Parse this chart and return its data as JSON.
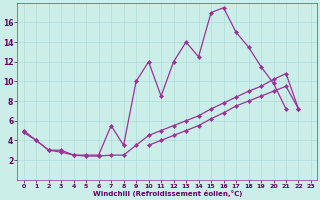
{
  "xlabel": "Windchill (Refroidissement éolien,°C)",
  "bg_color": "#cceee8",
  "grid_color": "#aadddd",
  "line_color": "#993399",
  "xlim": [
    -0.5,
    23.5
  ],
  "ylim": [
    0,
    18
  ],
  "xticks": [
    0,
    1,
    2,
    3,
    4,
    5,
    6,
    7,
    8,
    9,
    10,
    11,
    12,
    13,
    14,
    15,
    16,
    17,
    18,
    19,
    20,
    21,
    22,
    23
  ],
  "yticks": [
    2,
    4,
    6,
    8,
    10,
    12,
    14,
    16
  ],
  "line1_x": [
    0,
    1,
    2,
    3,
    4,
    5,
    6,
    7,
    8,
    9,
    10,
    11,
    12,
    13,
    14,
    15,
    16,
    17,
    18,
    19,
    20,
    21,
    22
  ],
  "line1_y": [
    5,
    4,
    3,
    3,
    2.5,
    2.5,
    2.5,
    5.5,
    3.5,
    10,
    12,
    8.5,
    12,
    14,
    12.5,
    17,
    17.5,
    15,
    13.5,
    11.5,
    9.8,
    7.2,
    null
  ],
  "line2_x": [
    0,
    1,
    2,
    3,
    4,
    5,
    6,
    7,
    8,
    9,
    10,
    11,
    12,
    13,
    14,
    15,
    16,
    17,
    18,
    19,
    20,
    21,
    22
  ],
  "line2_y": [
    4.8,
    4,
    3,
    2.8,
    2.5,
    2.4,
    2.4,
    2.5,
    2.5,
    3.5,
    4.5,
    5.0,
    5.5,
    6.0,
    6.5,
    7.2,
    7.8,
    8.4,
    9.0,
    9.5,
    10.2,
    10.8,
    7.2
  ],
  "line3_x": [
    0,
    1,
    2,
    3,
    4,
    5,
    6,
    7,
    8,
    9,
    10,
    11,
    12,
    13,
    14,
    15,
    16,
    17,
    18,
    19,
    20,
    21,
    22
  ],
  "line3_y": [
    null,
    null,
    null,
    null,
    null,
    null,
    null,
    null,
    null,
    null,
    3.5,
    4.0,
    4.5,
    5.0,
    5.5,
    6.2,
    6.8,
    7.5,
    8.0,
    8.5,
    9.0,
    9.5,
    7.2
  ]
}
